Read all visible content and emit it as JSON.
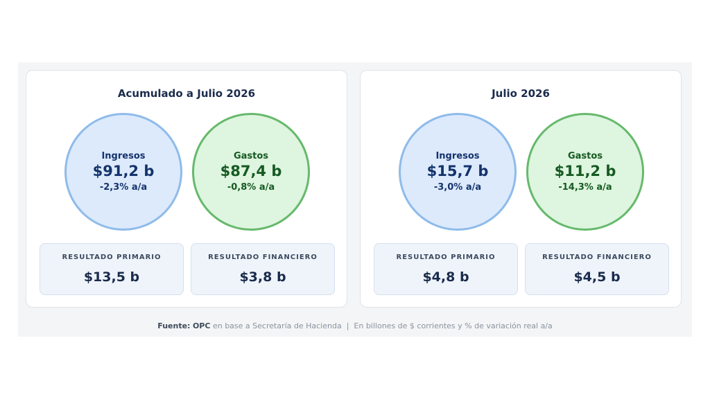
{
  "panels": [
    {
      "title": "Acumulado a Julio 2026",
      "ingresos": {
        "label": "Ingresos",
        "value": "$91,2 b",
        "variation": "-2,3% a/a"
      },
      "gastos": {
        "label": "Gastos",
        "value": "$87,4 b",
        "variation": "-0,8% a/a"
      },
      "resultado_primario": {
        "label": "RESULTADO PRIMARIO",
        "value": "$13,5 b"
      },
      "resultado_financiero": {
        "label": "RESULTADO FINANCIERO",
        "value": "$3,8 b"
      }
    },
    {
      "title": "Julio 2026",
      "ingresos": {
        "label": "Ingresos",
        "value": "$15,7 b",
        "variation": "-3,0% a/a"
      },
      "gastos": {
        "label": "Gastos",
        "value": "$11,2 b",
        "variation": "-14,3% a/a"
      },
      "resultado_primario": {
        "label": "RESULTADO PRIMARIO",
        "value": "$4,8 b"
      },
      "resultado_financiero": {
        "label": "RESULTADO FINANCIERO",
        "value": "$4,5 b"
      }
    }
  ],
  "footer": {
    "source_label": "Fuente:",
    "source_org": "OPC",
    "source_text": "en base a Secretaría de Hacienda",
    "separator": "|",
    "units_note": "En billones de $ corrientes y % de variación real a/a"
  },
  "colors": {
    "ingresos_fill": "#ddeafc",
    "ingresos_border": "#8ebbea",
    "gastos_fill": "#def5df",
    "gastos_border": "#66b96c",
    "title_text": "#1a2b4c"
  }
}
